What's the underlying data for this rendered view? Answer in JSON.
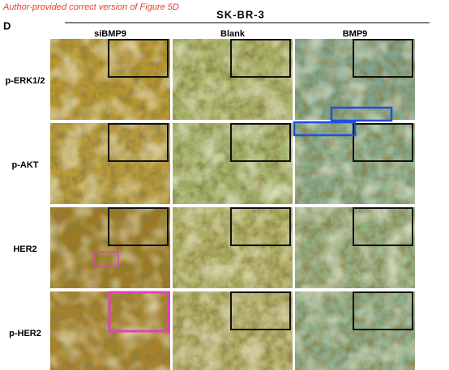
{
  "header": {
    "note": "Author-provided correct version of Figure 5D",
    "panel_label": "D",
    "cell_line": "SK-BR-3"
  },
  "columns": [
    "siBMP9",
    "Blank",
    "BMP9"
  ],
  "rows": [
    "p-ERK1/2",
    "p-AKT",
    "HER2",
    "p-HER2"
  ]
}
